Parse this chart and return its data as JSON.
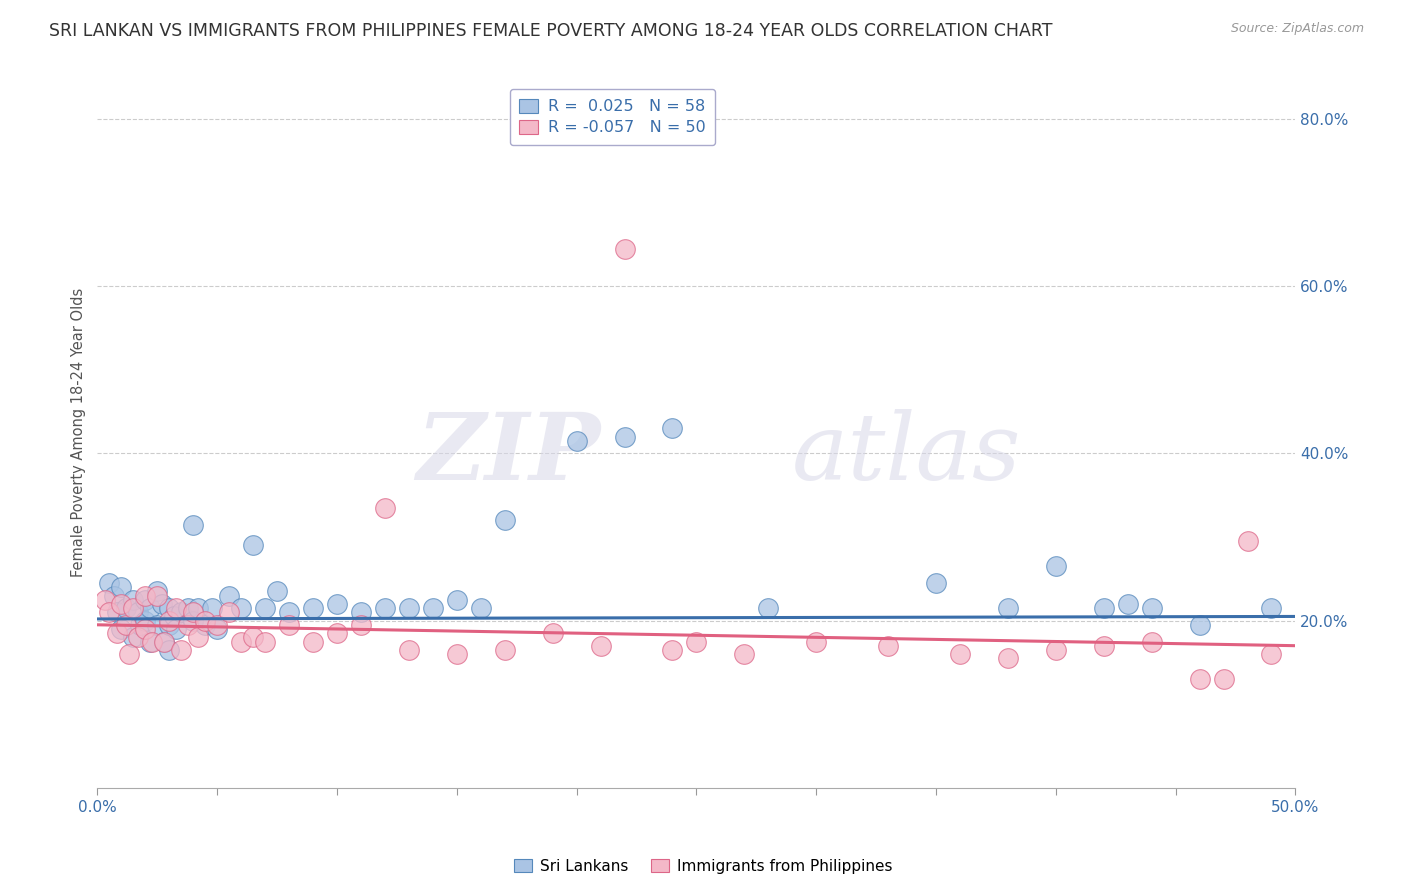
{
  "title": "SRI LANKAN VS IMMIGRANTS FROM PHILIPPINES FEMALE POVERTY AMONG 18-24 YEAR OLDS CORRELATION CHART",
  "source": "Source: ZipAtlas.com",
  "ylabel": "Female Poverty Among 18-24 Year Olds",
  "xlim": [
    0.0,
    0.5
  ],
  "ylim": [
    0.0,
    0.85
  ],
  "xticks": [
    0.0,
    0.05,
    0.1,
    0.15,
    0.2,
    0.25,
    0.3,
    0.35,
    0.4,
    0.45,
    0.5
  ],
  "xticklabels": [
    "0.0%",
    "",
    "",
    "",
    "",
    "",
    "",
    "",
    "",
    "",
    "50.0%"
  ],
  "yticks_right": [
    0.2,
    0.4,
    0.6,
    0.8
  ],
  "ytick_labels_right": [
    "20.0%",
    "40.0%",
    "60.0%",
    "80.0%"
  ],
  "hlines": [
    0.2,
    0.4,
    0.6,
    0.8
  ],
  "blue_R": "0.025",
  "blue_N": "58",
  "pink_R": "-0.057",
  "pink_N": "50",
  "blue_color": "#aac4e4",
  "pink_color": "#f4b8c8",
  "blue_edge_color": "#5588bb",
  "pink_edge_color": "#dd6688",
  "blue_line_color": "#3a6eaa",
  "pink_line_color": "#e06080",
  "legend_label_blue": "Sri Lankans",
  "legend_label_pink": "Immigrants from Philippines",
  "blue_trend": [
    0.202,
    0.205
  ],
  "pink_trend": [
    0.195,
    0.17
  ],
  "blue_scatter_x": [
    0.005,
    0.007,
    0.008,
    0.01,
    0.01,
    0.012,
    0.015,
    0.015,
    0.017,
    0.018,
    0.02,
    0.02,
    0.022,
    0.022,
    0.025,
    0.025,
    0.027,
    0.028,
    0.03,
    0.03,
    0.03,
    0.032,
    0.033,
    0.035,
    0.038,
    0.04,
    0.04,
    0.042,
    0.045,
    0.048,
    0.05,
    0.055,
    0.06,
    0.065,
    0.07,
    0.075,
    0.08,
    0.09,
    0.1,
    0.11,
    0.12,
    0.13,
    0.14,
    0.15,
    0.16,
    0.17,
    0.2,
    0.22,
    0.24,
    0.28,
    0.35,
    0.38,
    0.4,
    0.42,
    0.43,
    0.44,
    0.46,
    0.49
  ],
  "blue_scatter_y": [
    0.245,
    0.23,
    0.21,
    0.24,
    0.19,
    0.215,
    0.225,
    0.18,
    0.21,
    0.195,
    0.225,
    0.2,
    0.215,
    0.175,
    0.235,
    0.195,
    0.22,
    0.175,
    0.215,
    0.195,
    0.165,
    0.205,
    0.19,
    0.21,
    0.215,
    0.315,
    0.2,
    0.215,
    0.195,
    0.215,
    0.19,
    0.23,
    0.215,
    0.29,
    0.215,
    0.235,
    0.21,
    0.215,
    0.22,
    0.21,
    0.215,
    0.215,
    0.215,
    0.225,
    0.215,
    0.32,
    0.415,
    0.42,
    0.43,
    0.215,
    0.245,
    0.215,
    0.265,
    0.215,
    0.22,
    0.215,
    0.195,
    0.215
  ],
  "pink_scatter_x": [
    0.003,
    0.005,
    0.008,
    0.01,
    0.012,
    0.013,
    0.015,
    0.017,
    0.02,
    0.02,
    0.023,
    0.025,
    0.028,
    0.03,
    0.033,
    0.035,
    0.038,
    0.04,
    0.042,
    0.045,
    0.05,
    0.055,
    0.06,
    0.065,
    0.07,
    0.08,
    0.09,
    0.1,
    0.11,
    0.12,
    0.13,
    0.15,
    0.17,
    0.19,
    0.21,
    0.22,
    0.24,
    0.25,
    0.27,
    0.3,
    0.33,
    0.36,
    0.38,
    0.4,
    0.42,
    0.44,
    0.46,
    0.47,
    0.48,
    0.49
  ],
  "pink_scatter_y": [
    0.225,
    0.21,
    0.185,
    0.22,
    0.195,
    0.16,
    0.215,
    0.18,
    0.23,
    0.19,
    0.175,
    0.23,
    0.175,
    0.2,
    0.215,
    0.165,
    0.195,
    0.21,
    0.18,
    0.2,
    0.195,
    0.21,
    0.175,
    0.18,
    0.175,
    0.195,
    0.175,
    0.185,
    0.195,
    0.335,
    0.165,
    0.16,
    0.165,
    0.185,
    0.17,
    0.645,
    0.165,
    0.175,
    0.16,
    0.175,
    0.17,
    0.16,
    0.155,
    0.165,
    0.17,
    0.175,
    0.13,
    0.13,
    0.295,
    0.16
  ],
  "watermark_zip": "ZIP",
  "watermark_atlas": "atlas",
  "background_color": "#ffffff",
  "title_fontsize": 12.5,
  "axis_label_fontsize": 10.5,
  "tick_fontsize": 11
}
